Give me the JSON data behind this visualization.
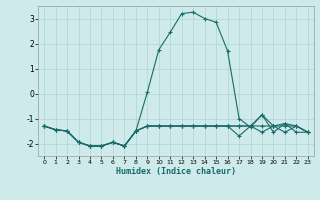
{
  "xlabel": "Humidex (Indice chaleur)",
  "x": [
    0,
    1,
    2,
    3,
    4,
    5,
    6,
    7,
    8,
    9,
    10,
    11,
    12,
    13,
    14,
    15,
    16,
    17,
    18,
    19,
    20,
    21,
    22,
    23
  ],
  "line1": [
    -1.3,
    -1.45,
    -1.5,
    -1.95,
    -2.1,
    -2.1,
    -1.95,
    -2.1,
    -1.5,
    -1.3,
    -1.3,
    -1.3,
    -1.3,
    -1.3,
    -1.3,
    -1.3,
    -1.3,
    -1.3,
    -1.3,
    -1.3,
    -1.3,
    -1.3,
    -1.3,
    -1.55
  ],
  "line2": [
    -1.3,
    -1.45,
    -1.5,
    -1.95,
    -2.1,
    -2.1,
    -1.95,
    -2.1,
    -1.5,
    -1.3,
    -1.3,
    -1.3,
    -1.3,
    -1.3,
    -1.3,
    -1.3,
    -1.3,
    -1.3,
    -1.3,
    -1.55,
    -1.3,
    -1.55,
    -1.3,
    -1.55
  ],
  "line3": [
    -1.3,
    -1.45,
    -1.5,
    -1.95,
    -2.1,
    -2.1,
    -1.95,
    -2.1,
    -1.5,
    0.05,
    1.75,
    2.45,
    3.2,
    3.25,
    3.0,
    2.85,
    1.7,
    -1.0,
    -1.35,
    -0.85,
    -1.3,
    -1.2,
    -1.55,
    -1.55
  ],
  "line4": [
    -1.3,
    -1.45,
    -1.5,
    -1.95,
    -2.1,
    -2.1,
    -1.95,
    -2.1,
    -1.5,
    -1.3,
    -1.3,
    -1.3,
    -1.3,
    -1.3,
    -1.3,
    -1.3,
    -1.3,
    -1.7,
    -1.3,
    -0.85,
    -1.55,
    -1.2,
    -1.3,
    -1.55
  ],
  "line_color": "#1a6b6b",
  "bg_color": "#ceeaea",
  "grid_color": "#afd4d4",
  "ylim": [
    -2.5,
    3.5
  ],
  "xlim": [
    -0.5,
    23.5
  ],
  "yticks": [
    -2,
    -1,
    0,
    1,
    2,
    3
  ],
  "xticks": [
    0,
    1,
    2,
    3,
    4,
    5,
    6,
    7,
    8,
    9,
    10,
    11,
    12,
    13,
    14,
    15,
    16,
    17,
    18,
    19,
    20,
    21,
    22,
    23
  ]
}
